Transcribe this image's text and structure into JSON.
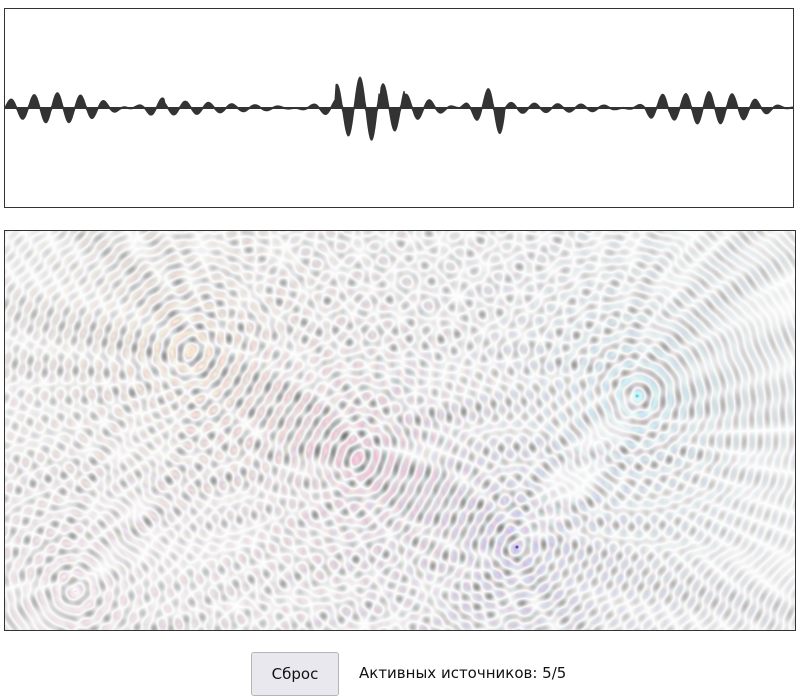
{
  "controls": {
    "reset_label": "Сброс",
    "status_text": "Активных источников: 5/5"
  },
  "waveform": {
    "color": "#333333",
    "background": "#ffffff"
  },
  "field": {
    "background": "#ffffff",
    "sources": [
      {
        "name": "yellow",
        "color": "#d8b040"
      },
      {
        "name": "crimson",
        "color": "#b02050"
      },
      {
        "name": "cyan",
        "color": "#30d8e0"
      },
      {
        "name": "indigo",
        "color": "#4030a8"
      },
      {
        "name": "pink",
        "color": "#e0a0c0"
      }
    ]
  }
}
